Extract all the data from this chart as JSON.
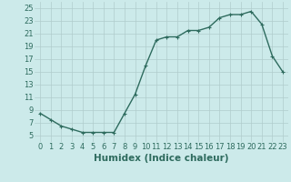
{
  "x": [
    0,
    1,
    2,
    3,
    4,
    5,
    6,
    7,
    8,
    9,
    10,
    11,
    12,
    13,
    14,
    15,
    16,
    17,
    18,
    19,
    20,
    21,
    22,
    23
  ],
  "y": [
    8.5,
    7.5,
    6.5,
    6.0,
    5.5,
    5.5,
    5.5,
    5.5,
    8.5,
    11.5,
    16.0,
    20.0,
    20.5,
    20.5,
    21.5,
    21.5,
    22.0,
    23.5,
    24.0,
    24.0,
    24.5,
    22.5,
    17.5,
    15.0
  ],
  "line_color": "#2e6b5e",
  "marker": "+",
  "marker_size": 3,
  "linewidth": 1.0,
  "bg_color": "#cceaea",
  "grid_color": "#b0cccc",
  "xlabel": "Humidex (Indice chaleur)",
  "xlim": [
    -0.5,
    23.5
  ],
  "ylim": [
    4,
    26
  ],
  "yticks": [
    5,
    7,
    9,
    11,
    13,
    15,
    17,
    19,
    21,
    23,
    25
  ],
  "xticks": [
    0,
    1,
    2,
    3,
    4,
    5,
    6,
    7,
    8,
    9,
    10,
    11,
    12,
    13,
    14,
    15,
    16,
    17,
    18,
    19,
    20,
    21,
    22,
    23
  ],
  "tick_fontsize": 6,
  "xlabel_fontsize": 7.5
}
